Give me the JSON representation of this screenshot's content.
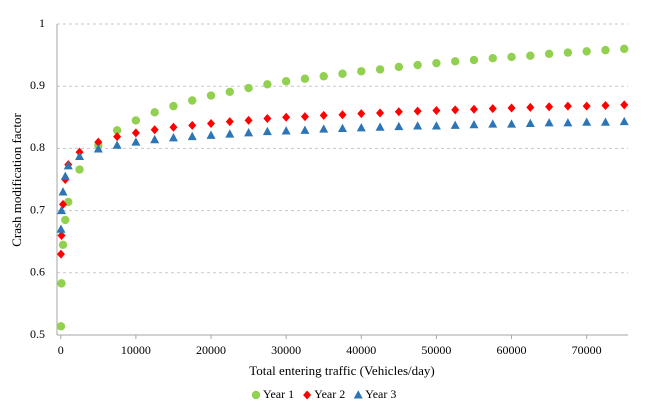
{
  "chart_data": {
    "type": "scatter",
    "y_label": "Crash modification factor",
    "x_label": "Total entering traffic (Vehicles/day)",
    "xlim": [
      -500,
      75500
    ],
    "xticks": [
      0,
      10000,
      20000,
      30000,
      40000,
      50000,
      60000,
      70000
    ],
    "ylim": [
      0.5,
      1
    ],
    "yticks": [
      0.5,
      0.6,
      0.7,
      0.8,
      0.9,
      1
    ],
    "grid": true,
    "legend": "bottom",
    "x": [
      30,
      100,
      300,
      600,
      1000,
      2500,
      5000,
      7500,
      10000,
      12500,
      15000,
      17500,
      20000,
      22500,
      25000,
      27500,
      30000,
      32500,
      35000,
      37500,
      40000,
      42500,
      45000,
      47500,
      50000,
      52500,
      55000,
      57500,
      60000,
      62500,
      65000,
      67500,
      70000,
      72500,
      75000
    ],
    "series": [
      {
        "name": "Year 1",
        "color": "#92d050",
        "marker": "circle",
        "values": [
          0.514,
          0.583,
          0.645,
          0.685,
          0.714,
          0.766,
          0.805,
          0.829,
          0.845,
          0.858,
          0.868,
          0.877,
          0.885,
          0.891,
          0.897,
          0.903,
          0.908,
          0.912,
          0.916,
          0.92,
          0.924,
          0.927,
          0.931,
          0.934,
          0.937,
          0.94,
          0.942,
          0.945,
          0.947,
          0.949,
          0.952,
          0.954,
          0.956,
          0.958,
          0.96
        ]
      },
      {
        "name": "Year 2",
        "color": "#ff0000",
        "marker": "diamond",
        "values": [
          0.63,
          0.66,
          0.71,
          0.75,
          0.774,
          0.794,
          0.81,
          0.819,
          0.825,
          0.83,
          0.834,
          0.837,
          0.84,
          0.843,
          0.845,
          0.848,
          0.85,
          0.851,
          0.853,
          0.854,
          0.856,
          0.857,
          0.859,
          0.86,
          0.861,
          0.862,
          0.863,
          0.864,
          0.865,
          0.866,
          0.867,
          0.868,
          0.868,
          0.869,
          0.87
        ]
      },
      {
        "name": "Year 3",
        "color": "#2e75b6",
        "marker": "triangle",
        "values": [
          0.67,
          0.7,
          0.73,
          0.755,
          0.772,
          0.787,
          0.799,
          0.805,
          0.81,
          0.814,
          0.817,
          0.819,
          0.821,
          0.823,
          0.825,
          0.827,
          0.828,
          0.829,
          0.831,
          0.832,
          0.833,
          0.834,
          0.835,
          0.836,
          0.836,
          0.837,
          0.838,
          0.839,
          0.839,
          0.84,
          0.841,
          0.841,
          0.842,
          0.842,
          0.843
        ]
      }
    ]
  }
}
